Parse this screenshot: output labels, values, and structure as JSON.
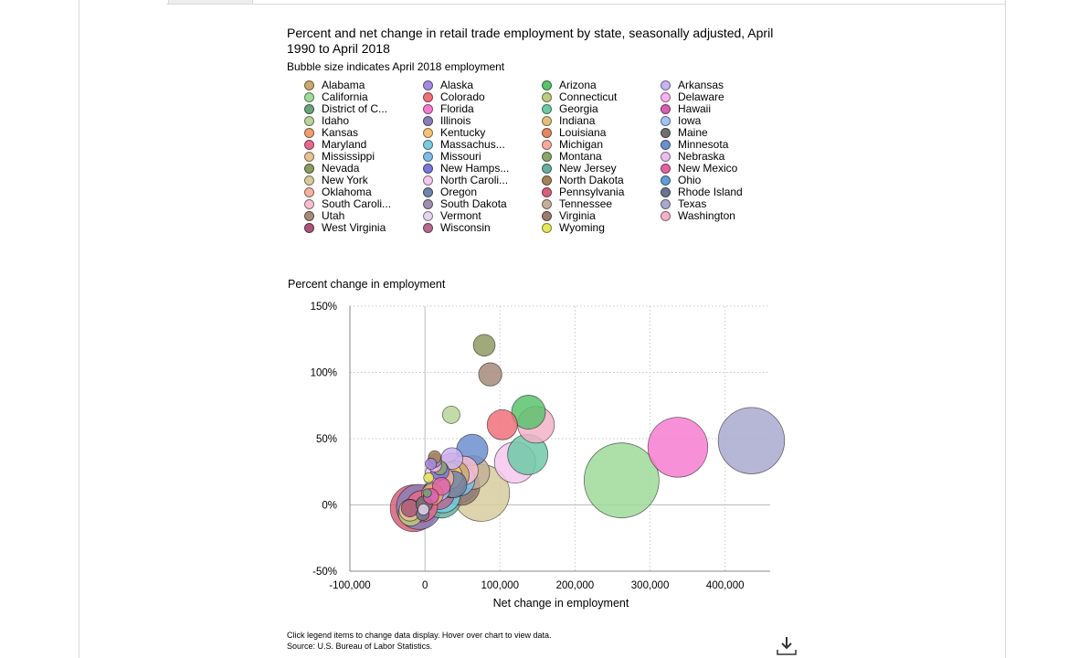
{
  "header": {
    "title": "Percent and net change in retail trade employment by state, seasonally adjusted, April 1990 to April 2018",
    "subtitle": "Bubble size indicates April 2018 employment"
  },
  "legend": [
    {
      "label": "Alabama",
      "color": "#c9a96e"
    },
    {
      "label": "Alaska",
      "color": "#a58bde"
    },
    {
      "label": "Arizona",
      "color": "#5cc26e"
    },
    {
      "label": "Arkansas",
      "color": "#c9b3f2"
    },
    {
      "label": "California",
      "color": "#9fdb9a"
    },
    {
      "label": "Colorado",
      "color": "#f0707a"
    },
    {
      "label": "Connecticut",
      "color": "#bccb7c"
    },
    {
      "label": "Delaware",
      "color": "#f9b3f0"
    },
    {
      "label": "District of C...",
      "color": "#6aa37c"
    },
    {
      "label": "Florida",
      "color": "#f77dd1"
    },
    {
      "label": "Georgia",
      "color": "#6fc9a8"
    },
    {
      "label": "Hawaii",
      "color": "#d95fb0"
    },
    {
      "label": "Idaho",
      "color": "#b9d39a"
    },
    {
      "label": "Illinois",
      "color": "#8a7fb6"
    },
    {
      "label": "Indiana",
      "color": "#e3c07b"
    },
    {
      "label": "Iowa",
      "color": "#a6c2f5"
    },
    {
      "label": "Kansas",
      "color": "#ef9f6f"
    },
    {
      "label": "Kentucky",
      "color": "#f7c37a"
    },
    {
      "label": "Louisiana",
      "color": "#e48764"
    },
    {
      "label": "Maine",
      "color": "#707070"
    },
    {
      "label": "Maryland",
      "color": "#e6688e"
    },
    {
      "label": "Massachus...",
      "color": "#78cbe0"
    },
    {
      "label": "Michigan",
      "color": "#f7a9a0"
    },
    {
      "label": "Minnesota",
      "color": "#6d8fcf"
    },
    {
      "label": "Mississippi",
      "color": "#e6c294"
    },
    {
      "label": "Missouri",
      "color": "#7fbde6"
    },
    {
      "label": "Montana",
      "color": "#8aa66d"
    },
    {
      "label": "Nebraska",
      "color": "#ebbff2"
    },
    {
      "label": "Nevada",
      "color": "#8f9a62"
    },
    {
      "label": "New Hamps...",
      "color": "#7a78d6"
    },
    {
      "label": "New Jersey",
      "color": "#6aaf9c"
    },
    {
      "label": "New Mexico",
      "color": "#e2649e"
    },
    {
      "label": "New York",
      "color": "#d7cb9d"
    },
    {
      "label": "North Caroli...",
      "color": "#f6c7ef"
    },
    {
      "label": "North Dakota",
      "color": "#a7835b"
    },
    {
      "label": "Ohio",
      "color": "#5f9fd6"
    },
    {
      "label": "Oklahoma",
      "color": "#f3b2a2"
    },
    {
      "label": "Oregon",
      "color": "#6f86a8"
    },
    {
      "label": "Pennsylvania",
      "color": "#d6607a"
    },
    {
      "label": "Rhode Island",
      "color": "#6b7590"
    },
    {
      "label": "South Caroli...",
      "color": "#f7bdd0"
    },
    {
      "label": "South Dakota",
      "color": "#9d8fae"
    },
    {
      "label": "Tennessee",
      "color": "#c4b099"
    },
    {
      "label": "Texas",
      "color": "#a9a9cf"
    },
    {
      "label": "Utah",
      "color": "#a68a7b"
    },
    {
      "label": "Vermont",
      "color": "#e3d4f0"
    },
    {
      "label": "Virginia",
      "color": "#9a7b70"
    },
    {
      "label": "Washington",
      "color": "#f3b2c8"
    },
    {
      "label": "West Virginia",
      "color": "#a8557a"
    },
    {
      "label": "Wisconsin",
      "color": "#b56b92"
    },
    {
      "label": "Wyoming",
      "color": "#e6e65a"
    }
  ],
  "chart_data": {
    "type": "scatter",
    "title": "",
    "xlabel": "Net change in employment",
    "ylabel": "Percent change in employment",
    "xlim": [
      -100000,
      460000
    ],
    "ylim": [
      -50,
      150
    ],
    "x_ticks": [
      -100000,
      0,
      100000,
      200000,
      300000,
      400000
    ],
    "x_tick_labels": [
      "-100,000",
      "0",
      "100,000",
      "200,000",
      "300,000",
      "400,000"
    ],
    "y_ticks": [
      -50,
      0,
      50,
      100,
      150
    ],
    "y_tick_labels": [
      "-50%",
      "0%",
      "50%",
      "100%",
      "150%"
    ],
    "grid": true,
    "grid_style": "dotted",
    "size_note": "Bubble size indicates April 2018 employment",
    "points": [
      {
        "name": "Texas",
        "x": 435000,
        "y": 48.5,
        "size": 1300000,
        "color": "#a9a9cf"
      },
      {
        "name": "Florida",
        "x": 337000,
        "y": 43.5,
        "size": 1060000,
        "color": "#f77dd1"
      },
      {
        "name": "California",
        "x": 262000,
        "y": 18.5,
        "size": 1660000,
        "color": "#9fdb9a"
      },
      {
        "name": "Washington",
        "x": 148000,
        "y": 60.5,
        "size": 400000,
        "color": "#f3b2c8"
      },
      {
        "name": "Arizona",
        "x": 138000,
        "y": 70,
        "size": 340000,
        "color": "#5cc26e"
      },
      {
        "name": "Georgia",
        "x": 137000,
        "y": 38,
        "size": 480000,
        "color": "#6fc9a8"
      },
      {
        "name": "North Carolina",
        "x": 120000,
        "y": 32,
        "size": 500000,
        "color": "#f6c7ef"
      },
      {
        "name": "Colorado",
        "x": 103000,
        "y": 60.5,
        "size": 270000,
        "color": "#f0707a"
      },
      {
        "name": "Nevada",
        "x": 79000,
        "y": 120.5,
        "size": 140000,
        "color": "#8f9a62"
      },
      {
        "name": "Utah",
        "x": 87000,
        "y": 98.5,
        "size": 160000,
        "color": "#a68a7b"
      },
      {
        "name": "New York",
        "x": 75000,
        "y": 9,
        "size": 950000,
        "color": "#d7cb9d"
      },
      {
        "name": "Tennessee",
        "x": 64000,
        "y": 24.5,
        "size": 330000,
        "color": "#c4b099"
      },
      {
        "name": "Minnesota",
        "x": 63000,
        "y": 41.5,
        "size": 290000,
        "color": "#6d8fcf"
      },
      {
        "name": "Virginia",
        "x": 48000,
        "y": 14,
        "size": 420000,
        "color": "#9a7b70"
      },
      {
        "name": "South Carolina",
        "x": 52000,
        "y": 26,
        "size": 240000,
        "color": "#f7bdd0"
      },
      {
        "name": "Ohio",
        "x": 42000,
        "y": 17.5,
        "size": 570000,
        "color": "#5f9fd6"
      },
      {
        "name": "Missouri",
        "x": 45000,
        "y": 19,
        "size": 310000,
        "color": "#7fbde6"
      },
      {
        "name": "Indiana",
        "x": 33000,
        "y": 19,
        "size": 320000,
        "color": "#e3c07b"
      },
      {
        "name": "Kentucky",
        "x": 32000,
        "y": 22,
        "size": 210000,
        "color": "#f7c37a"
      },
      {
        "name": "Alabama",
        "x": 40000,
        "y": 22.5,
        "size": 240000,
        "color": "#c9a96e"
      },
      {
        "name": "Michigan",
        "x": 38000,
        "y": 24,
        "size": 470000,
        "color": "#f7a9a0"
      },
      {
        "name": "Oregon",
        "x": 38000,
        "y": 15.5,
        "size": 210000,
        "color": "#6f86a8"
      },
      {
        "name": "Louisiana",
        "x": 34000,
        "y": 16,
        "size": 230000,
        "color": "#e48764"
      },
      {
        "name": "Oklahoma",
        "x": 22000,
        "y": 20,
        "size": 180000,
        "color": "#f3b2a2"
      },
      {
        "name": "Idaho",
        "x": 35000,
        "y": 68,
        "size": 90000,
        "color": "#b9d39a"
      },
      {
        "name": "Arkansas",
        "x": 36000,
        "y": 35,
        "size": 140000,
        "color": "#c9b3f2"
      },
      {
        "name": "New Jersey",
        "x": 22000,
        "y": 5,
        "size": 460000,
        "color": "#6aaf9c"
      },
      {
        "name": "Massachusetts",
        "x": 24000,
        "y": 7,
        "size": 350000,
        "color": "#78cbe0"
      },
      {
        "name": "Wisconsin",
        "x": 18000,
        "y": 8.5,
        "size": 300000,
        "color": "#b56b92"
      },
      {
        "name": "Iowa",
        "x": 17000,
        "y": 12,
        "size": 180000,
        "color": "#a6c2f5"
      },
      {
        "name": "New Mexico",
        "x": 22000,
        "y": 14,
        "size": 95000,
        "color": "#e2649e"
      },
      {
        "name": "Montana",
        "x": 20000,
        "y": 28,
        "size": 60000,
        "color": "#8aa66d"
      },
      {
        "name": "Delaware",
        "x": 13000,
        "y": 30,
        "size": 55000,
        "color": "#f9b3f0"
      },
      {
        "name": "Nebraska",
        "x": 13000,
        "y": 24,
        "size": 105000,
        "color": "#ebbff2"
      },
      {
        "name": "North Dakota",
        "x": 13000,
        "y": 36,
        "size": 48000,
        "color": "#a7835b"
      },
      {
        "name": "South Dakota",
        "x": 13000,
        "y": 33.5,
        "size": 55000,
        "color": "#9d8fae"
      },
      {
        "name": "Wyoming",
        "x": 5000,
        "y": 20.5,
        "size": 30000,
        "color": "#e6e65a"
      },
      {
        "name": "New Hampshire",
        "x": 20000,
        "y": 25.5,
        "size": 100000,
        "color": "#7a78d6"
      },
      {
        "name": "Kansas",
        "x": 10000,
        "y": 8,
        "size": 140000,
        "color": "#ef9f6f"
      },
      {
        "name": "Alaska",
        "x": 8000,
        "y": 31,
        "size": 37000,
        "color": "#a58bde"
      },
      {
        "name": "Hawaii",
        "x": 8000,
        "y": 6.5,
        "size": 70000,
        "color": "#d95fb0"
      },
      {
        "name": "Maryland",
        "x": -4000,
        "y": -1,
        "size": 290000,
        "color": "#e6688e"
      },
      {
        "name": "Pennsylvania",
        "x": -15000,
        "y": -2.5,
        "size": 650000,
        "color": "#d6607a"
      },
      {
        "name": "Illinois",
        "x": -8000,
        "y": -1.5,
        "size": 600000,
        "color": "#8a7fb6"
      },
      {
        "name": "Connecticut",
        "x": -19000,
        "y": -6.5,
        "size": 180000,
        "color": "#bccb7c"
      },
      {
        "name": "Mississippi",
        "x": -20000,
        "y": -4,
        "size": 140000,
        "color": "#e6c294"
      },
      {
        "name": "West Virginia",
        "x": -20000,
        "y": -2.5,
        "size": 90000,
        "color": "#a8557a"
      },
      {
        "name": "Rhode Island",
        "x": -3000,
        "y": -7,
        "size": 48000,
        "color": "#6b7590"
      },
      {
        "name": "Vermont",
        "x": -2000,
        "y": -3.5,
        "size": 36000,
        "color": "#e3d4f0"
      },
      {
        "name": "Maine",
        "x": -1000,
        "y": 0.5,
        "size": 80000,
        "color": "#707070"
      },
      {
        "name": "District of Columbia",
        "x": 3000,
        "y": 9,
        "size": 22000,
        "color": "#6aa37c"
      }
    ]
  },
  "footer": {
    "note": "Click legend items to change data display. Hover over chart to view data.",
    "source": "Source: U.S. Bureau of Labor Statistics."
  },
  "icons": {
    "download": "download-icon"
  }
}
